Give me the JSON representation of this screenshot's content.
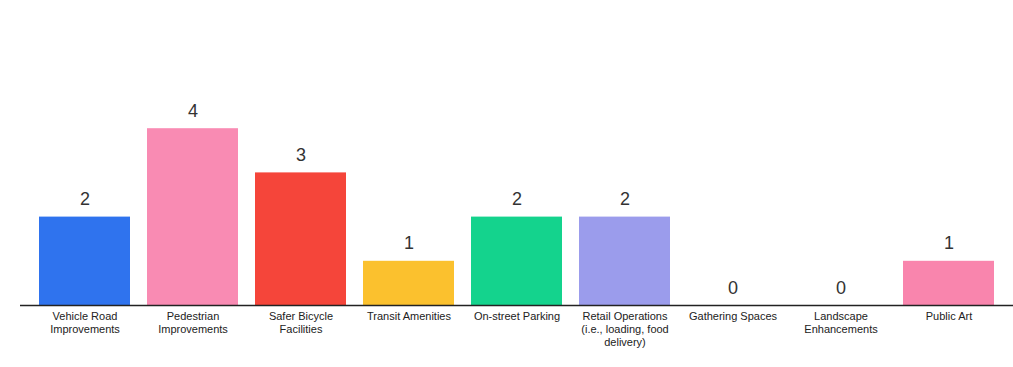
{
  "chart_data": {
    "type": "bar",
    "categories": [
      "Vehicle Road Improvements",
      "Pedestrian Improvements",
      "Safer Bicycle Facilities",
      "Transit Amenities",
      "On-street Parking",
      "Retail Operations (i.e., loading, food delivery)",
      "Gathering Spaces",
      "Landscape Enhancements",
      "Public Art"
    ],
    "values": [
      2,
      4,
      3,
      1,
      2,
      2,
      0,
      0,
      1
    ],
    "colors": [
      "#2f73ee",
      "#f98bb3",
      "#f5453a",
      "#fbc12e",
      "#14d38d",
      "#9b9cec",
      "#9b9cec",
      "#9b9cec",
      "#f985ad"
    ],
    "ylim": [
      0,
      5
    ],
    "data_labels": true,
    "tick_labels": "x",
    "grid": false
  }
}
